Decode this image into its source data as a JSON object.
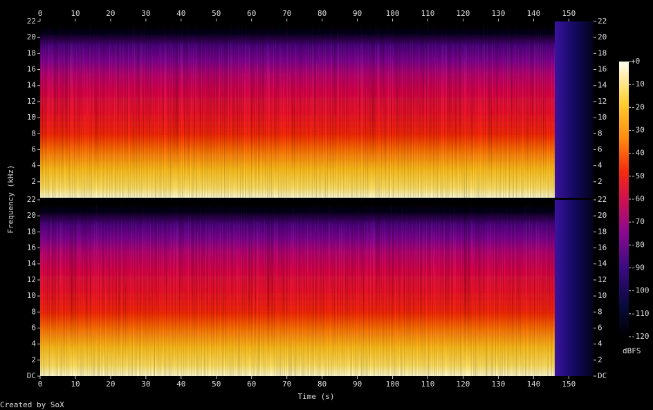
{
  "chart_data": {
    "type": "spectrogram",
    "x_label": "Time (s)",
    "y_label": "Frequency (kHz)",
    "xlim": [
      0,
      157
    ],
    "xticks": [
      0,
      10,
      20,
      30,
      40,
      50,
      60,
      70,
      80,
      90,
      100,
      110,
      120,
      130,
      140,
      150
    ],
    "panels": [
      {
        "ylim": [
          0,
          22
        ],
        "yticks": [
          2,
          4,
          6,
          8,
          10,
          12,
          14,
          16,
          18,
          20,
          22
        ]
      },
      {
        "ylim": [
          0,
          22
        ],
        "yticks": [
          {
            "value": 0,
            "label": "DC"
          },
          2,
          4,
          6,
          8,
          10,
          12,
          14,
          16,
          18,
          20,
          22
        ]
      }
    ],
    "colorbar": {
      "label": "dBFS",
      "lim": [
        -120,
        0
      ],
      "ticks": [
        {
          "value": 0,
          "label": "+0"
        },
        -10,
        -20,
        -30,
        -40,
        -50,
        -60,
        -70,
        -80,
        -90,
        -100,
        -110,
        -120
      ]
    }
  },
  "footer": "Created by SoX"
}
